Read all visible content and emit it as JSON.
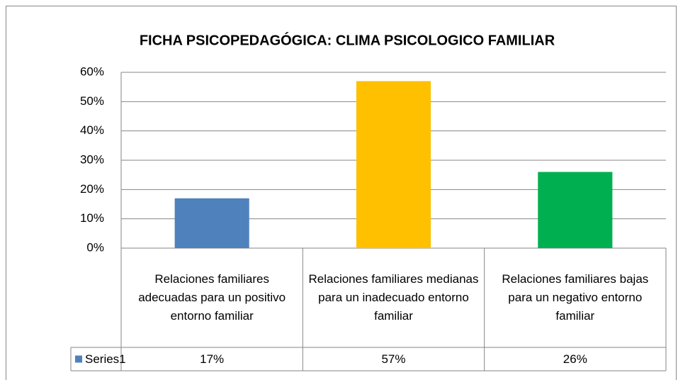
{
  "chart_data": {
    "type": "bar",
    "title": "FICHA PSICOPEDAGÓGICA: CLIMA PSICOLOGICO FAMILIAR",
    "categories": [
      "Relaciones familiares adecuadas para un positivo  entorno familiar",
      "Relaciones familiares medianas para un inadecuado entorno familiar",
      "Relaciones familiares bajas  para un negativo entorno familiar"
    ],
    "series": [
      {
        "name": "Series1",
        "color": "#4f81bd",
        "colors": [
          "#4f81bd",
          "#ffc000",
          "#00b050"
        ],
        "values": [
          17,
          57,
          26
        ],
        "value_labels": [
          "17%",
          "57%",
          "26%"
        ]
      }
    ],
    "ylim": [
      0,
      60
    ],
    "yticks": [
      {
        "value": 0,
        "label": "0%"
      },
      {
        "value": 10,
        "label": "10%"
      },
      {
        "value": 20,
        "label": "20%"
      },
      {
        "value": 30,
        "label": "30%"
      },
      {
        "value": 40,
        "label": "40%"
      },
      {
        "value": 50,
        "label": "50%"
      },
      {
        "value": 60,
        "label": "60%"
      }
    ],
    "grid": true,
    "data_table": true
  }
}
